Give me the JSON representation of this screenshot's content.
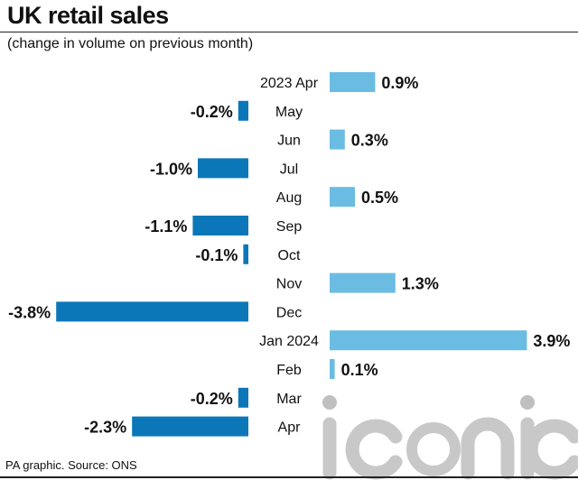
{
  "header": {
    "title": "UK retail sales",
    "subtitle": "(change in volume on previous month)"
  },
  "footer": {
    "source": "PA graphic. Source: ONS"
  },
  "watermark": {
    "text": "iconic"
  },
  "colors": {
    "positive": "#6bbce3",
    "negative": "#0c77b8",
    "text": "#111111",
    "watermark": "#bfbfbf"
  },
  "chart_data": {
    "type": "bar",
    "orientation": "horizontal-diverging",
    "title": "UK retail sales",
    "subtitle": "(change in volume on previous month)",
    "xlabel": "",
    "ylabel": "",
    "unit": "%",
    "grid": false,
    "categories": [
      "2023 Apr",
      "May",
      "Jun",
      "Jul",
      "Aug",
      "Sep",
      "Oct",
      "Nov",
      "Dec",
      "Jan 2024",
      "Feb",
      "Mar",
      "Apr"
    ],
    "values": [
      0.9,
      -0.2,
      0.3,
      -1.0,
      0.5,
      -1.1,
      -0.1,
      1.3,
      -3.8,
      3.9,
      0.1,
      -0.2,
      -2.3
    ],
    "value_labels": [
      "0.9%",
      "-0.2%",
      "0.3%",
      "-1.0%",
      "0.5%",
      "-1.1%",
      "-0.1%",
      "1.3%",
      "-3.8%",
      "3.9%",
      "0.1%",
      "-0.2%",
      "-2.3%"
    ],
    "xlim": [
      -3.8,
      3.9
    ]
  }
}
